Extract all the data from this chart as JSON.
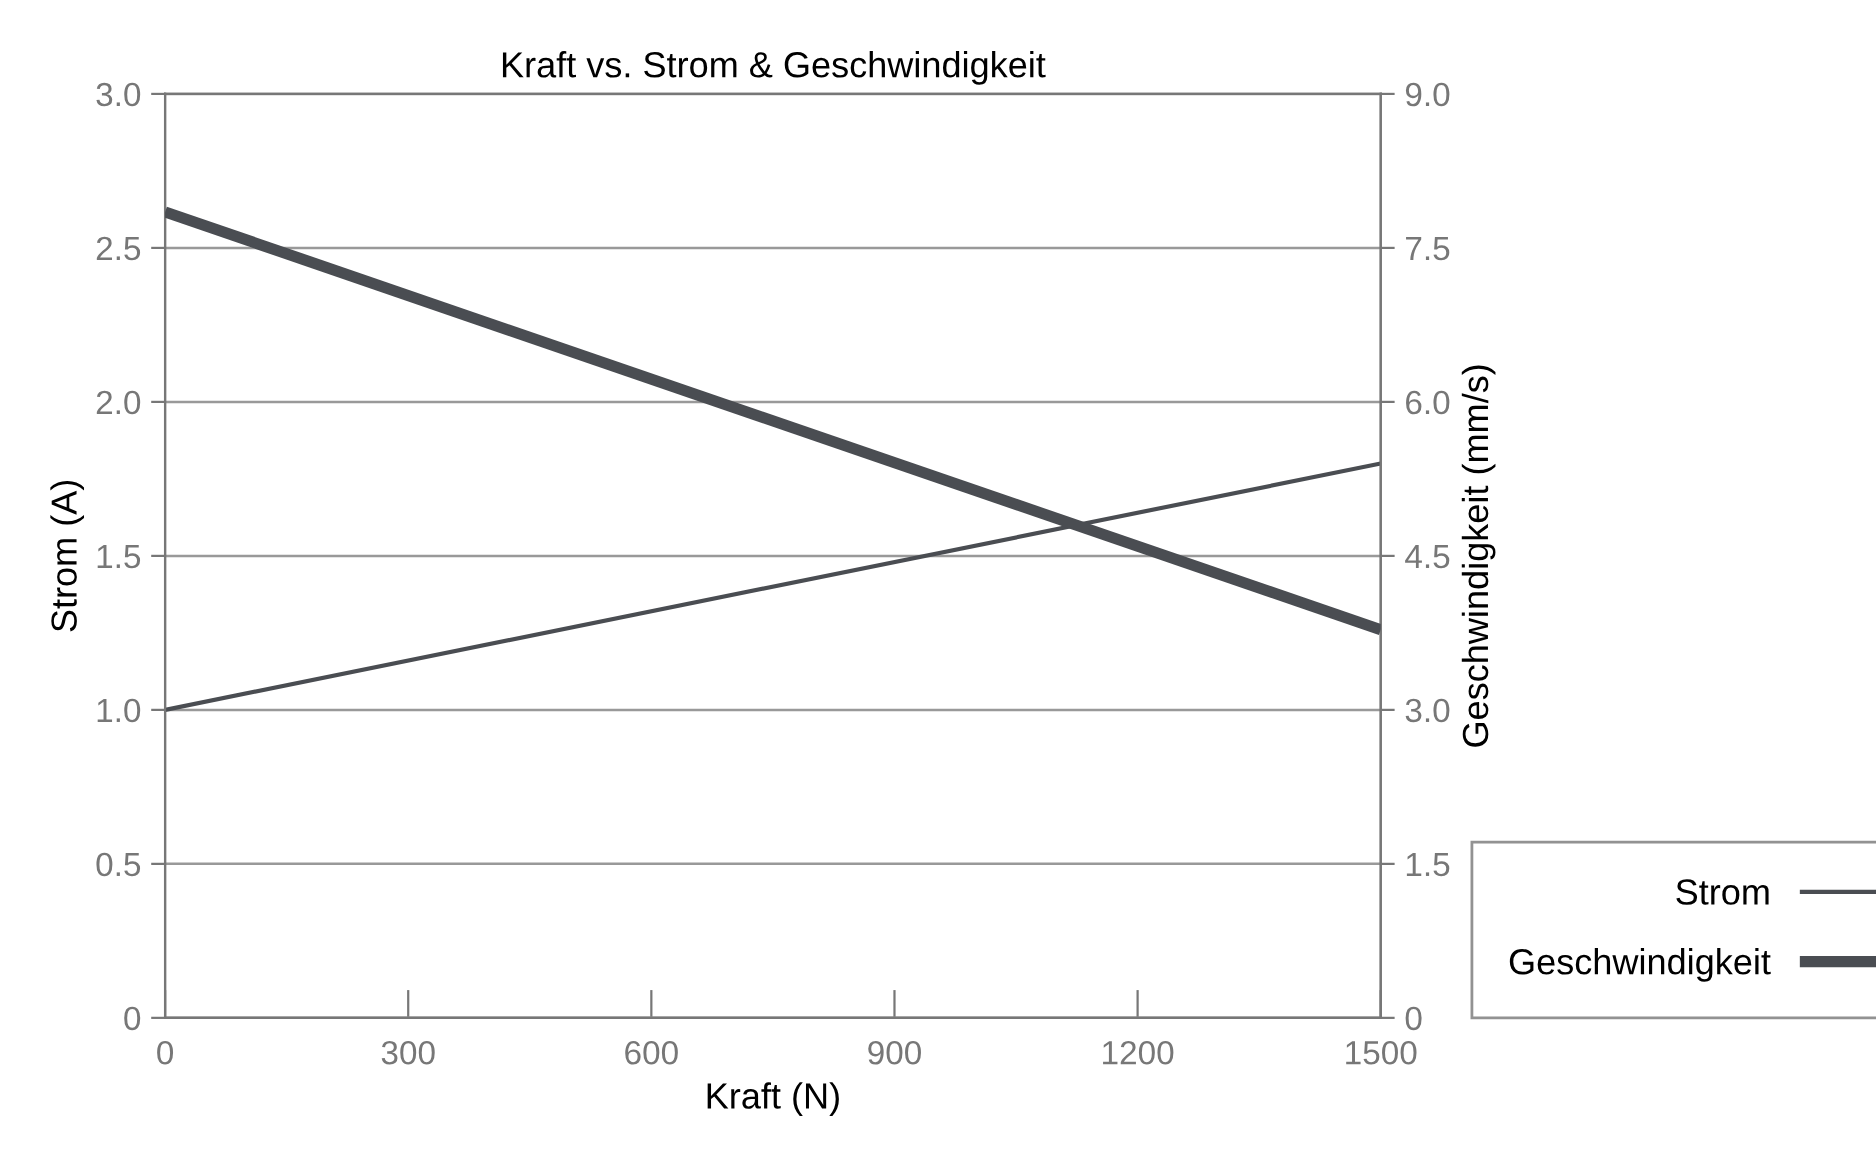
{
  "chart_data": {
    "type": "line",
    "title": "Kraft vs. Strom & Geschwindigkeit",
    "xlabel": "Kraft (N)",
    "ylabel": "Strom (A)",
    "y2label": "Geschwindigkeit (mm/s)",
    "x": [
      0,
      1500
    ],
    "series": [
      {
        "name": "Strom",
        "color": "#4a4d52",
        "values": [
          1.0,
          1.8
        ]
      },
      {
        "name": "Geschwindigkeit",
        "color": "#4a4d52",
        "values": [
          7.85,
          3.78
        ],
        "axis": "y2"
      }
    ],
    "xlim": [
      0,
      1500
    ],
    "xticks": [
      0,
      300,
      600,
      900,
      1200,
      1500
    ],
    "ylim": [
      0,
      3.0
    ],
    "yticks": [
      0,
      {
        "value": 0.5,
        "label": "0.5"
      },
      {
        "value": 1.0,
        "label": "1.0"
      },
      {
        "value": 1.5,
        "label": "1.5"
      },
      {
        "value": 2.0,
        "label": "2.0"
      },
      {
        "value": 2.5,
        "label": "2.5"
      },
      {
        "value": 3.0,
        "label": "3.0"
      }
    ],
    "y2lim": [
      0,
      9.0
    ],
    "y2ticks": [
      0,
      {
        "value": 1.5,
        "label": "1.5"
      },
      {
        "value": 3.0,
        "label": "3.0"
      },
      {
        "value": 4.5,
        "label": "4.5"
      },
      {
        "value": 6.0,
        "label": "6.0"
      },
      {
        "value": 7.5,
        "label": "7.5"
      },
      {
        "value": 9.0,
        "label": "9.0"
      }
    ],
    "grid": "y",
    "legend": "bottom right",
    "marker": "none",
    "line_style": "solid"
  }
}
